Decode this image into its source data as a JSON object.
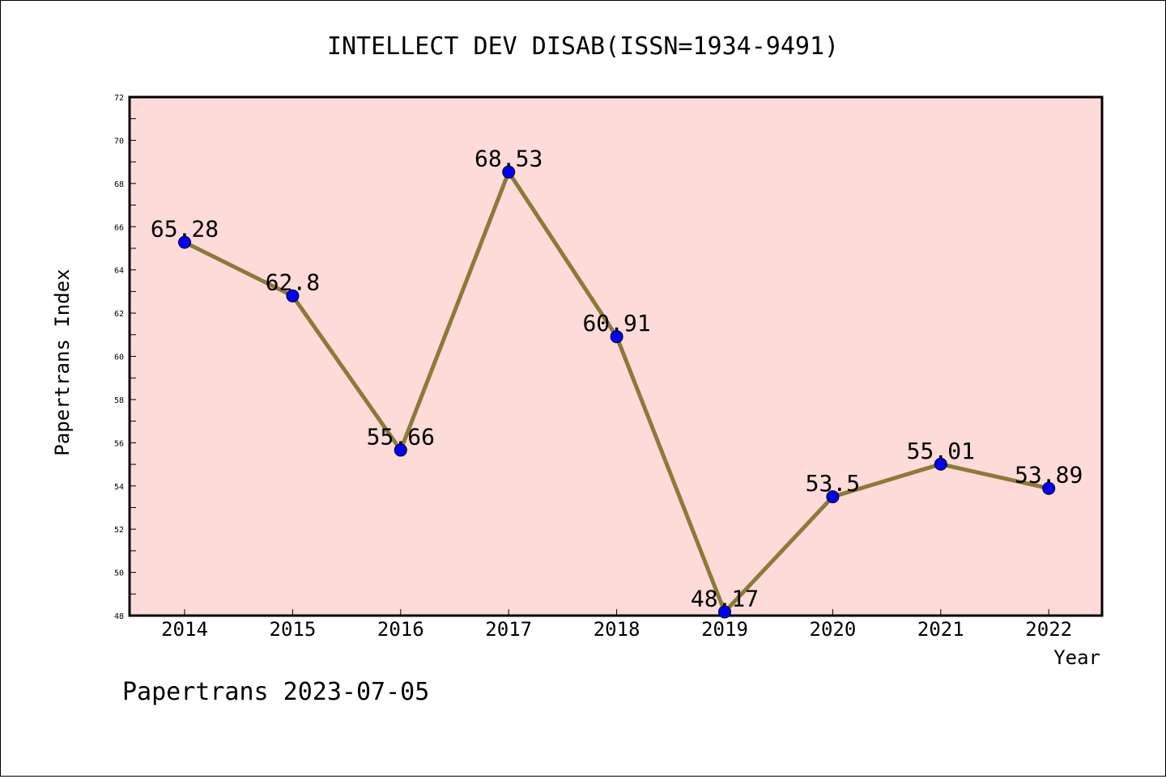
{
  "chart_data": {
    "type": "line",
    "title": "INTELLECT DEV DISAB(ISSN=1934-9491)",
    "xlabel": "Year",
    "ylabel": "Papertrans Index",
    "footer": "Papertrans 2023-07-05",
    "categories": [
      "2014",
      "2015",
      "2016",
      "2017",
      "2018",
      "2019",
      "2020",
      "2021",
      "2022"
    ],
    "series": [
      {
        "values": [
          65.28,
          62.8,
          55.66,
          68.53,
          60.91,
          48.17,
          53.5,
          55.01,
          53.89
        ],
        "labels": [
          "65.28",
          "62.8",
          "55.66",
          "68.53",
          "60.91",
          "48.17",
          "53.5",
          "55.01",
          "53.89"
        ]
      }
    ],
    "ylim": [
      48,
      72
    ],
    "yticks": [
      "48",
      "50",
      "52",
      "54",
      "56",
      "58",
      "60",
      "62",
      "64",
      "66",
      "68",
      "70",
      "72"
    ],
    "grid": false,
    "colors": {
      "plot_background": "#fddbd8",
      "line": "#8b7a3a",
      "marker": "#0000ff",
      "axis": "#000000"
    }
  }
}
